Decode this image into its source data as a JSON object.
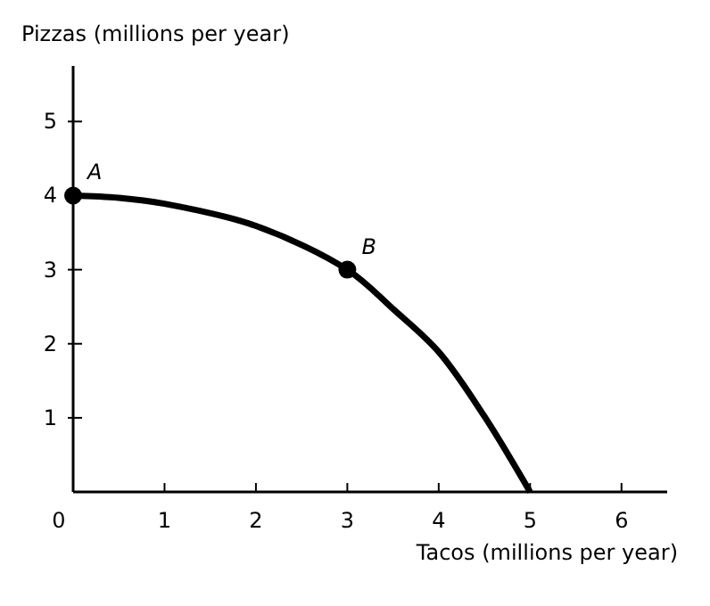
{
  "chart_data": {
    "type": "line",
    "xlabel": "Tacos (millions per year)",
    "ylabel": "Pizzas (millions per year)",
    "xlim": [
      0,
      6.5
    ],
    "ylim": [
      0,
      5.75
    ],
    "xticks": [
      0,
      1,
      2,
      3,
      4,
      5,
      6
    ],
    "yticks": [
      1,
      2,
      3,
      4,
      5
    ],
    "grid": false,
    "series": [
      {
        "type": "line",
        "color": "#000000",
        "marker": "none",
        "x": [
          0,
          0.5,
          1,
          2,
          3,
          3.5,
          4,
          4.5,
          5
        ],
        "values": [
          4,
          3.97,
          3.89,
          3.59,
          3,
          2.47,
          1.89,
          1.02,
          0
        ]
      },
      {
        "type": "scatter",
        "color": "#000000",
        "marker": "circle",
        "x": [
          0,
          3
        ],
        "values": [
          4,
          3
        ]
      }
    ],
    "annotations": [
      {
        "text": "A",
        "x": 0,
        "y": 4
      },
      {
        "text": "B",
        "x": 3,
        "y": 3
      }
    ]
  }
}
